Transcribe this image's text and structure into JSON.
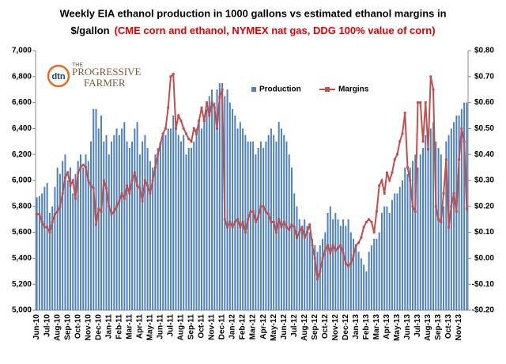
{
  "chart_data": {
    "type": "bar-line",
    "title_line1": "Weekly EIA ethanol production in 1000 gallons vs  estimated ethanol margins in",
    "title_line2_black": "$/gallon",
    "title_line2_red": "(CME corn and ethanol, NYMEX nat gas, DDG 100%  value of corn)",
    "logo": {
      "mark": "dtn",
      "small": "THE",
      "name1": "PROGRESSIVE",
      "name2": "FARMER"
    },
    "legend_position": "upper center",
    "categories": [
      "Jun-10",
      null,
      null,
      null,
      "Jul-10",
      null,
      null,
      null,
      "Aug-10",
      null,
      null,
      null,
      "Sep-10",
      null,
      null,
      null,
      "Oct-10",
      null,
      null,
      null,
      "Nov-10",
      null,
      null,
      null,
      "Dec-10",
      null,
      null,
      null,
      "Jan-11",
      null,
      null,
      null,
      "Feb-11",
      null,
      null,
      null,
      "Mar-11",
      null,
      null,
      null,
      "Apr-11",
      null,
      null,
      null,
      "May-11",
      null,
      null,
      null,
      "Jun-11",
      null,
      null,
      null,
      "Jul-11",
      null,
      null,
      null,
      "Aug-11",
      null,
      null,
      null,
      "Sep-11",
      null,
      null,
      null,
      "Oct-11",
      null,
      null,
      null,
      "Nov-11",
      null,
      null,
      null,
      "Dec-11",
      null,
      null,
      null,
      "Jan-12",
      null,
      null,
      null,
      "Feb-12",
      null,
      null,
      null,
      "Mar-12",
      null,
      null,
      null,
      "Apr-12",
      null,
      null,
      null,
      "May-12",
      null,
      null,
      null,
      "Jun-12",
      null,
      null,
      null,
      "Jul-12",
      null,
      null,
      null,
      "Aug-12",
      null,
      null,
      null,
      "Sep-12",
      null,
      null,
      null,
      "Oct-12",
      null,
      null,
      null,
      "Nov-12",
      null,
      null,
      null,
      "Dec-12",
      null,
      null,
      null,
      "Jan-13",
      null,
      null,
      null,
      "Feb-13",
      null,
      null,
      null,
      "Mar-13",
      null,
      null,
      null,
      "Apr-13",
      null,
      null,
      null,
      "May-13",
      null,
      null,
      null,
      "Jun-13",
      null,
      null,
      null,
      "Jul-13",
      null,
      null,
      null,
      "Aug-13",
      null,
      null,
      null,
      "Sep-13",
      null,
      null,
      null,
      "Oct-13",
      null,
      null,
      null,
      "Nov-13",
      null,
      null,
      null
    ],
    "series": [
      {
        "name": "Production",
        "color": "#4f81bd",
        "values": [
          5870,
          5880,
          5900,
          5950,
          5980,
          5750,
          5800,
          5950,
          6100,
          6050,
          6150,
          6200,
          6000,
          6100,
          5900,
          6050,
          6150,
          6200,
          6100,
          6200,
          6150,
          6300,
          6550,
          6550,
          6400,
          6500,
          6300,
          6350,
          6200,
          6300,
          6350,
          6400,
          6350,
          6400,
          6450,
          6300,
          6250,
          6300,
          6400,
          6450,
          6200,
          6300,
          6350,
          6250,
          6150,
          6100,
          6200,
          6250,
          6300,
          6350,
          6350,
          6400,
          6400,
          6500,
          6400,
          6350,
          6300,
          6350,
          6200,
          6250,
          6250,
          6300,
          6400,
          6450,
          6400,
          6500,
          6550,
          6650,
          6700,
          6600,
          6700,
          6750,
          6750,
          6650,
          6700,
          6600,
          6550,
          6500,
          6400,
          6450,
          6400,
          6350,
          6300,
          6300,
          6300,
          6200,
          6250,
          6300,
          6250,
          6300,
          6350,
          6400,
          6350,
          6300,
          6450,
          6400,
          6350,
          6300,
          6200,
          6100,
          5900,
          5800,
          5700,
          5650,
          5700,
          5650,
          5600,
          5550,
          5500,
          5450,
          5500,
          5550,
          5600,
          5750,
          5800,
          5700,
          5750,
          5700,
          5650,
          5700,
          5650,
          5700,
          5600,
          5550,
          5500,
          5450,
          5400,
          5350,
          5300,
          5450,
          5500,
          5550,
          5550,
          5600,
          5750,
          5800,
          5800,
          5750,
          5850,
          5900,
          5900,
          5950,
          6000,
          6100,
          6050,
          6100,
          6150,
          6200,
          6100,
          6200,
          6250,
          6350,
          6350,
          6400,
          6450,
          6300,
          6250,
          6200,
          5800,
          6300,
          6350,
          6400,
          6450,
          6500,
          6500,
          6550,
          6600,
          6600
        ]
      },
      {
        "name": "Margins",
        "color": "#c0504d",
        "axis": "y2",
        "values": [
          0.17,
          0.17,
          0.14,
          0.12,
          0.12,
          0.1,
          0.14,
          0.17,
          0.18,
          0.2,
          0.25,
          0.31,
          0.33,
          0.28,
          0.3,
          0.23,
          0.33,
          0.35,
          0.36,
          0.35,
          0.3,
          0.28,
          0.27,
          0.13,
          0.19,
          0.18,
          0.3,
          0.27,
          0.2,
          0.17,
          0.18,
          0.2,
          0.22,
          0.25,
          0.23,
          0.28,
          0.25,
          0.3,
          0.33,
          0.28,
          0.27,
          0.22,
          0.3,
          0.28,
          0.25,
          0.3,
          0.35,
          0.4,
          0.44,
          0.48,
          0.5,
          0.58,
          0.7,
          0.71,
          0.5,
          0.55,
          0.53,
          0.5,
          0.48,
          0.46,
          0.45,
          0.5,
          0.48,
          0.53,
          0.58,
          0.53,
          0.6,
          0.55,
          0.6,
          0.58,
          0.5,
          0.62,
          0.65,
          0.15,
          0.12,
          0.14,
          0.12,
          0.14,
          0.15,
          0.12,
          0.14,
          0.1,
          0.15,
          0.18,
          0.18,
          0.14,
          0.16,
          0.2,
          0.2,
          0.18,
          0.17,
          0.14,
          0.14,
          0.1,
          0.15,
          0.12,
          0.14,
          0.12,
          0.11,
          0.13,
          0.12,
          0.08,
          0.1,
          0.12,
          0.08,
          0.1,
          0.13,
          0.05,
          0.0,
          -0.08,
          -0.05,
          0.0,
          0.03,
          0.05,
          0.02,
          0.05,
          0.03,
          0.04,
          0.05,
          0.02,
          -0.02,
          -0.03,
          -0.02,
          0.01,
          0.05,
          0.06,
          0.08,
          0.12,
          0.14,
          0.15,
          0.14,
          0.1,
          0.18,
          0.28,
          0.3,
          0.25,
          0.33,
          0.3,
          0.33,
          0.38,
          0.4,
          0.45,
          0.48,
          0.56,
          0.35,
          0.3,
          0.2,
          0.18,
          0.6,
          0.6,
          0.45,
          0.6,
          0.42,
          0.7,
          0.65,
          0.2,
          0.15,
          0.14,
          0.25,
          0.38,
          0.12,
          0.2,
          0.25,
          0.18,
          0.38,
          0.5,
          0.45,
          0.19
        ]
      }
    ],
    "ylim": [
      5000,
      7000
    ],
    "yticks": [
      {
        "value": 5000,
        "label": "5,000"
      },
      {
        "value": 5200,
        "label": "5,200"
      },
      {
        "value": 5400,
        "label": "5,400"
      },
      {
        "value": 5600,
        "label": "5,600"
      },
      {
        "value": 5800,
        "label": "5,800"
      },
      {
        "value": 6000,
        "label": "6,000"
      },
      {
        "value": 6200,
        "label": "6,200"
      },
      {
        "value": 6400,
        "label": "6,400"
      },
      {
        "value": 6600,
        "label": "6,600"
      },
      {
        "value": 6800,
        "label": "6,800"
      },
      {
        "value": 7000,
        "label": "7,000"
      }
    ],
    "y2lim": [
      -0.2,
      0.8
    ],
    "y2ticks": [
      {
        "value": -0.2,
        "label": "-$0.20"
      },
      {
        "value": -0.1,
        "label": "-$0.10"
      },
      {
        "value": 0,
        "label": "$0.00"
      },
      {
        "value": 0.1,
        "label": "$0.10"
      },
      {
        "value": 0.2,
        "label": "$0.20"
      },
      {
        "value": 0.3,
        "label": "$0.30"
      },
      {
        "value": 0.4,
        "label": "$0.40"
      },
      {
        "value": 0.5,
        "label": "$0.50"
      },
      {
        "value": 0.6,
        "label": "$0.60"
      },
      {
        "value": 0.7,
        "label": "$0.70"
      },
      {
        "value": 0.8,
        "label": "$0.80"
      }
    ]
  }
}
